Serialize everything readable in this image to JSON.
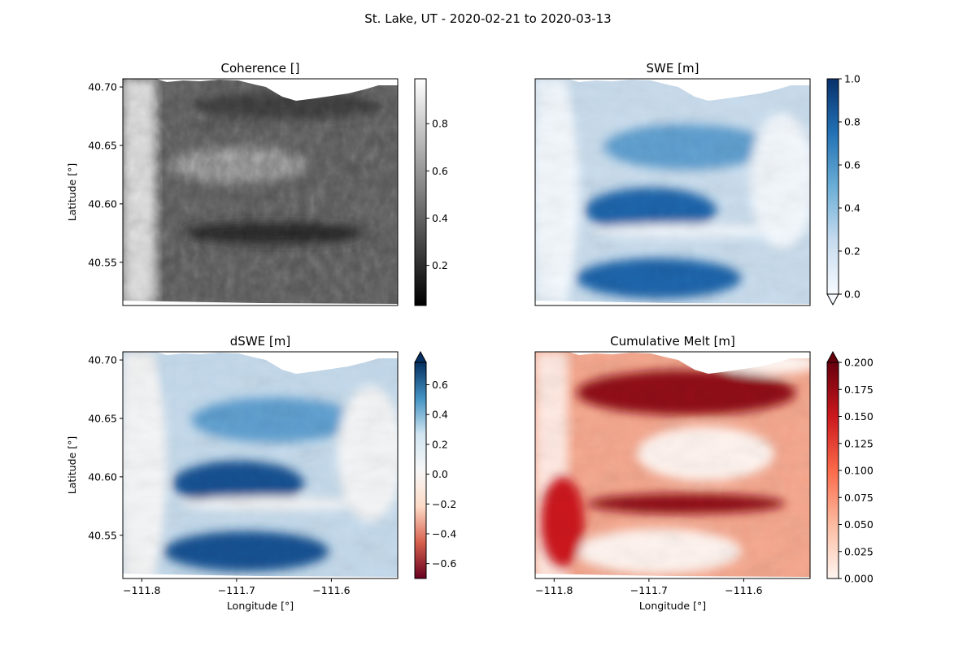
{
  "figure": {
    "suptitle": "St. Lake, UT - 2020-02-21 to 2020-03-13"
  },
  "chart_data": [
    {
      "type": "heatmap",
      "title": "Coherence []",
      "xlabel": "",
      "ylabel": "Latitude [°]",
      "xlim": [
        -111.82,
        -111.53
      ],
      "ylim": [
        40.513,
        40.707
      ],
      "x_ticks": [],
      "y_ticks": [
        40.55,
        40.6,
        40.65,
        40.7
      ],
      "y_tick_labels": [
        "40.55",
        "40.60",
        "40.65",
        "40.70"
      ],
      "colormap": "Greys_r",
      "colormap_stops": [
        "#000000",
        "#ffffff"
      ],
      "colorbar": {
        "min": 0.03,
        "max": 0.99,
        "ticks": [
          0.2,
          0.4,
          0.6,
          0.8
        ],
        "tick_labels": [
          "0.2",
          "0.4",
          "0.6",
          "0.8"
        ],
        "extend": "neither"
      }
    },
    {
      "type": "heatmap",
      "title": "SWE [m]",
      "xlabel": "",
      "ylabel": "",
      "xlim": [
        -111.82,
        -111.53
      ],
      "ylim": [
        40.513,
        40.707
      ],
      "x_ticks": [],
      "y_ticks": [],
      "colormap": "Blues",
      "colormap_stops": [
        "#f7fbff",
        "#c6dbef",
        "#6baed6",
        "#2171b5",
        "#08306b"
      ],
      "colorbar": {
        "min": 0.0,
        "max": 1.0,
        "ticks": [
          0.0,
          0.2,
          0.4,
          0.6,
          0.8,
          1.0
        ],
        "tick_labels": [
          "0.0",
          "0.2",
          "0.4",
          "0.6",
          "0.8",
          "1.0"
        ],
        "extend": "min"
      }
    },
    {
      "type": "heatmap",
      "title": "dSWE [m]",
      "xlabel": "Longitude [°]",
      "ylabel": "Latitude [°]",
      "xlim": [
        -111.82,
        -111.53
      ],
      "ylim": [
        40.513,
        40.707
      ],
      "x_ticks": [
        -111.8,
        -111.7,
        -111.6
      ],
      "x_tick_labels": [
        "−111.8",
        "−111.7",
        "−111.6"
      ],
      "y_ticks": [
        40.55,
        40.6,
        40.65,
        40.7
      ],
      "y_tick_labels": [
        "40.55",
        "40.60",
        "40.65",
        "40.70"
      ],
      "colormap": "RdBu",
      "colormap_stops": [
        "#67001f",
        "#d6604d",
        "#fddbc7",
        "#f7f7f7",
        "#d1e5f0",
        "#4393c3",
        "#053061"
      ],
      "colorbar": {
        "min": -0.7,
        "max": 0.75,
        "ticks": [
          -0.6,
          -0.4,
          -0.2,
          0.0,
          0.2,
          0.4,
          0.6
        ],
        "tick_labels": [
          "−0.6",
          "−0.4",
          "−0.2",
          "0.0",
          "0.2",
          "0.4",
          "0.6"
        ],
        "extend": "max"
      }
    },
    {
      "type": "heatmap",
      "title": "Cumulative Melt [m]",
      "xlabel": "Longitude [°]",
      "ylabel": "",
      "xlim": [
        -111.82,
        -111.53
      ],
      "ylim": [
        40.513,
        40.707
      ],
      "x_ticks": [
        -111.8,
        -111.7,
        -111.6
      ],
      "x_tick_labels": [
        "−111.8",
        "−111.7",
        "−111.6"
      ],
      "y_ticks": [],
      "colormap": "Reds",
      "colormap_stops": [
        "#fff5f0",
        "#fcbba1",
        "#fb6a4a",
        "#cb181d",
        "#67000d"
      ],
      "colorbar": {
        "min": 0.0,
        "max": 0.2,
        "ticks": [
          0.0,
          0.025,
          0.05,
          0.075,
          0.1,
          0.125,
          0.15,
          0.175,
          0.2
        ],
        "tick_labels": [
          "0.000",
          "0.025",
          "0.050",
          "0.075",
          "0.100",
          "0.125",
          "0.150",
          "0.175",
          "0.200"
        ],
        "extend": "max"
      }
    }
  ]
}
